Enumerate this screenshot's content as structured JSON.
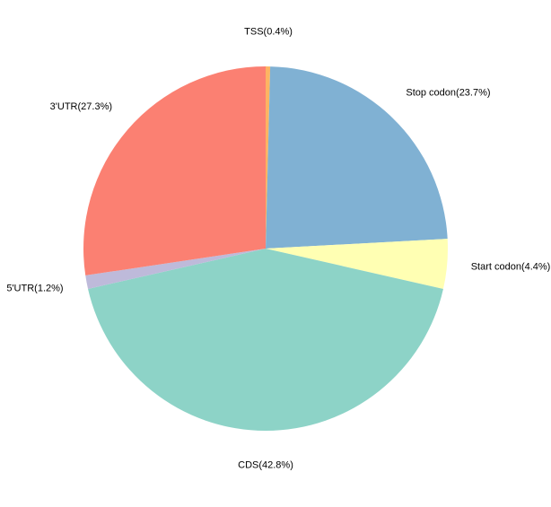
{
  "chart_data": {
    "type": "pie",
    "categories": [
      "TSS(0.4%)",
      "Stop codon(23.7%)",
      "Start codon(4.4%)",
      "CDS(42.8%)",
      "5'UTR(1.2%)",
      "3'UTR(27.3%)"
    ],
    "values": [
      0.4,
      23.7,
      4.4,
      42.8,
      1.2,
      27.3
    ],
    "colors": [
      "#fdb462",
      "#80b1d3",
      "#ffffb3",
      "#8dd3c7",
      "#bebada",
      "#fb8072"
    ]
  }
}
